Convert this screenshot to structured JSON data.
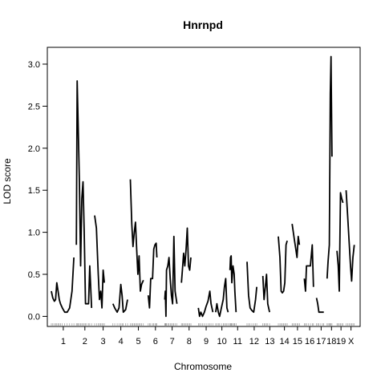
{
  "chart_data": {
    "type": "line",
    "title": "Hnrnpd",
    "xlabel": "Chromosome",
    "ylabel": "LOD score",
    "ylim": [
      -0.12,
      3.2
    ],
    "yticks": [
      0.0,
      0.5,
      1.0,
      1.5,
      2.0,
      2.5,
      3.0
    ],
    "ytick_labels": [
      "0.0",
      "0.5",
      "1.0",
      "1.5",
      "2.0",
      "2.5",
      "3.0"
    ],
    "grid": false,
    "legend": "none",
    "line_color": "#000000",
    "chromosomes": [
      {
        "label": "1",
        "start": 0,
        "end": 19.6,
        "points": [
          [
            0,
            0.3
          ],
          [
            1.2,
            0.22
          ],
          [
            2.5,
            0.18
          ],
          [
            3.5,
            0.2
          ],
          [
            4.5,
            0.4
          ],
          [
            5.5,
            0.3
          ],
          [
            6.5,
            0.2
          ],
          [
            7.5,
            0.15
          ],
          [
            9,
            0.1
          ],
          [
            11,
            0.05
          ],
          [
            13,
            0.05
          ],
          [
            15,
            0.1
          ],
          [
            17,
            0.3
          ],
          [
            18.5,
            0.7
          ]
        ]
      },
      {
        "label": "2",
        "start": 20.2,
        "end": 34.8,
        "points": [
          [
            20.5,
            0.85
          ],
          [
            21.2,
            2.8
          ],
          [
            22,
            2.3
          ],
          [
            23,
            1.6
          ],
          [
            24,
            0.6
          ],
          [
            25,
            1.4
          ],
          [
            26,
            1.6
          ],
          [
            27,
            1.0
          ],
          [
            28,
            0.15
          ],
          [
            29,
            0.15
          ],
          [
            30.5,
            0.15
          ],
          [
            31.5,
            0.6
          ],
          [
            33,
            0.1
          ]
        ]
      },
      {
        "label": "3",
        "start": 35.4,
        "end": 49.6,
        "points": [
          [
            35.5,
            1.2
          ],
          [
            37,
            1.05
          ],
          [
            38.5,
            0.5
          ],
          [
            39.5,
            0.2
          ],
          [
            40.5,
            0.3
          ],
          [
            41.5,
            0.1
          ],
          [
            42.5,
            0.55
          ],
          [
            43.5,
            0.4
          ]
        ]
      },
      {
        "label": "4",
        "start": 50.2,
        "end": 63.8,
        "points": [
          [
            50.5,
            0.15
          ],
          [
            52,
            0.1
          ],
          [
            54,
            0.05
          ],
          [
            55.5,
            0.1
          ],
          [
            57,
            0.38
          ],
          [
            58,
            0.25
          ],
          [
            59,
            0.05
          ],
          [
            61,
            0.08
          ],
          [
            62.5,
            0.2
          ]
        ]
      },
      {
        "label": "5",
        "start": 64.4,
        "end": 78.4,
        "points": [
          [
            64.8,
            1.63
          ],
          [
            66,
            1.1
          ],
          [
            67,
            0.83
          ],
          [
            68,
            1.0
          ],
          [
            69,
            1.12
          ],
          [
            70,
            0.8
          ],
          [
            71,
            0.5
          ],
          [
            72,
            0.72
          ],
          [
            73,
            0.3
          ],
          [
            74,
            0.38
          ],
          [
            75.5,
            0.43
          ]
        ]
      },
      {
        "label": "6",
        "start": 79.0,
        "end": 91.8,
        "points": [
          [
            79.5,
            0.25
          ],
          [
            80.5,
            0.1
          ],
          [
            81.5,
            0.45
          ],
          [
            83,
            0.45
          ],
          [
            84,
            0.8
          ],
          [
            85,
            0.85
          ],
          [
            86,
            0.87
          ],
          [
            86.6,
            0.7
          ]
        ]
      },
      {
        "label": "7",
        "start": 92.4,
        "end": 105.8,
        "points": [
          [
            93,
            0.2
          ],
          [
            93.5,
            0.3
          ],
          [
            94,
            0.0
          ],
          [
            94.5,
            0.55
          ],
          [
            95.5,
            0.6
          ],
          [
            96.5,
            0.7
          ],
          [
            97.5,
            0.45
          ],
          [
            98.5,
            0.25
          ],
          [
            99.5,
            0.15
          ],
          [
            100.5,
            0.95
          ],
          [
            101.5,
            0.3
          ],
          [
            103,
            0.15
          ]
        ]
      },
      {
        "label": "8",
        "start": 106.4,
        "end": 119.6,
        "points": [
          [
            106.7,
            0.4
          ],
          [
            107.5,
            0.55
          ],
          [
            108.5,
            0.75
          ],
          [
            109.5,
            0.6
          ],
          [
            110.5,
            0.8
          ],
          [
            111.5,
            1.05
          ],
          [
            112.5,
            0.6
          ],
          [
            113.5,
            0.55
          ],
          [
            114.5,
            0.7
          ]
        ]
      },
      {
        "label": "9",
        "start": 120.2,
        "end": 133.8,
        "points": [
          [
            120.6,
            0.1
          ],
          [
            121.6,
            0.0
          ],
          [
            122.6,
            0.05
          ],
          [
            124,
            0.0
          ],
          [
            125.5,
            0.05
          ],
          [
            127,
            0.12
          ],
          [
            128.5,
            0.18
          ],
          [
            130,
            0.3
          ],
          [
            131,
            0.15
          ],
          [
            132.5,
            0.05
          ]
        ]
      },
      {
        "label": "10",
        "start": 134.4,
        "end": 145.4,
        "points": [
          [
            134.8,
            0.05
          ],
          [
            135.8,
            0.15
          ],
          [
            137,
            0.05
          ],
          [
            138,
            0.0
          ],
          [
            139.5,
            0.1
          ],
          [
            141,
            0.2
          ],
          [
            142,
            0.35
          ],
          [
            143,
            0.45
          ],
          [
            144,
            0.1
          ],
          [
            145,
            0.05
          ]
        ]
      },
      {
        "label": "11",
        "start": 146.0,
        "end": 159.6,
        "points": [
          [
            146.5,
            0.55
          ],
          [
            147,
            0.7
          ],
          [
            147.5,
            0.72
          ],
          [
            148,
            0.4
          ],
          [
            149,
            0.6
          ],
          [
            150,
            0.5
          ],
          [
            150.5,
            0.3
          ],
          [
            151.5,
            0.05
          ]
        ]
      },
      {
        "label": "12",
        "start": 160.2,
        "end": 172.6,
        "points": [
          [
            160.5,
            0.65
          ],
          [
            161.8,
            0.25
          ],
          [
            163,
            0.1
          ],
          [
            164.5,
            0.07
          ],
          [
            166,
            0.05
          ],
          [
            167.5,
            0.2
          ],
          [
            168.5,
            0.35
          ]
        ]
      },
      {
        "label": "13",
        "start": 173.2,
        "end": 185.2,
        "points": [
          [
            173.5,
            0.48
          ],
          [
            174.5,
            0.2
          ],
          [
            175.5,
            0.35
          ],
          [
            176.5,
            0.5
          ],
          [
            177.5,
            0.15
          ],
          [
            179,
            0.05
          ]
        ]
      },
      {
        "label": "14",
        "start": 185.8,
        "end": 196.6,
        "points": [
          [
            186.2,
            0.95
          ],
          [
            187.5,
            0.7
          ],
          [
            188.5,
            0.3
          ],
          [
            189.5,
            0.28
          ],
          [
            190.5,
            0.3
          ],
          [
            191.5,
            0.4
          ],
          [
            192.5,
            0.85
          ],
          [
            193.5,
            0.9
          ]
        ]
      },
      {
        "label": "15",
        "start": 197.2,
        "end": 206.6,
        "points": [
          [
            197.5,
            1.1
          ],
          [
            198.5,
            1.0
          ],
          [
            199.5,
            0.9
          ],
          [
            200.5,
            0.8
          ],
          [
            201.5,
            0.7
          ],
          [
            202.5,
            0.95
          ],
          [
            203.5,
            0.85
          ]
        ]
      },
      {
        "label": "16",
        "start": 207.2,
        "end": 216.6,
        "points": [
          [
            207.5,
            0.45
          ],
          [
            208.5,
            0.3
          ],
          [
            209.3,
            0.6
          ],
          [
            211,
            0.6
          ],
          [
            212.5,
            0.6
          ],
          [
            214,
            0.85
          ],
          [
            215,
            0.35
          ]
        ]
      },
      {
        "label": "17",
        "start": 217.2,
        "end": 225.4,
        "points": [
          [
            217.5,
            0.22
          ],
          [
            218.5,
            0.15
          ],
          [
            219.5,
            0.05
          ],
          [
            221,
            0.05
          ],
          [
            222.5,
            0.05
          ],
          [
            223.5,
            0.05
          ]
        ]
      },
      {
        "label": "18",
        "start": 226.0,
        "end": 233.6,
        "points": [
          [
            226.2,
            0.45
          ],
          [
            227,
            0.65
          ],
          [
            228,
            0.85
          ],
          [
            228.8,
            2.65
          ],
          [
            229.4,
            3.09
          ],
          [
            230.2,
            1.9
          ]
        ]
      },
      {
        "label": "19",
        "start": 234.2,
        "end": 241.0,
        "points": [
          [
            234.3,
            0.78
          ],
          [
            235.3,
            0.6
          ],
          [
            236.2,
            0.3
          ],
          [
            237.2,
            1.47
          ],
          [
            238.2,
            1.4
          ],
          [
            239.2,
            1.35
          ]
        ]
      },
      {
        "label": "X",
        "start": 241.6,
        "end": 250.0,
        "points": [
          [
            241.8,
            1.5
          ],
          [
            243,
            1.2
          ],
          [
            244.2,
            0.9
          ],
          [
            245.4,
            0.6
          ],
          [
            246.3,
            0.42
          ],
          [
            247.4,
            0.7
          ],
          [
            248.5,
            0.85
          ]
        ]
      }
    ]
  }
}
